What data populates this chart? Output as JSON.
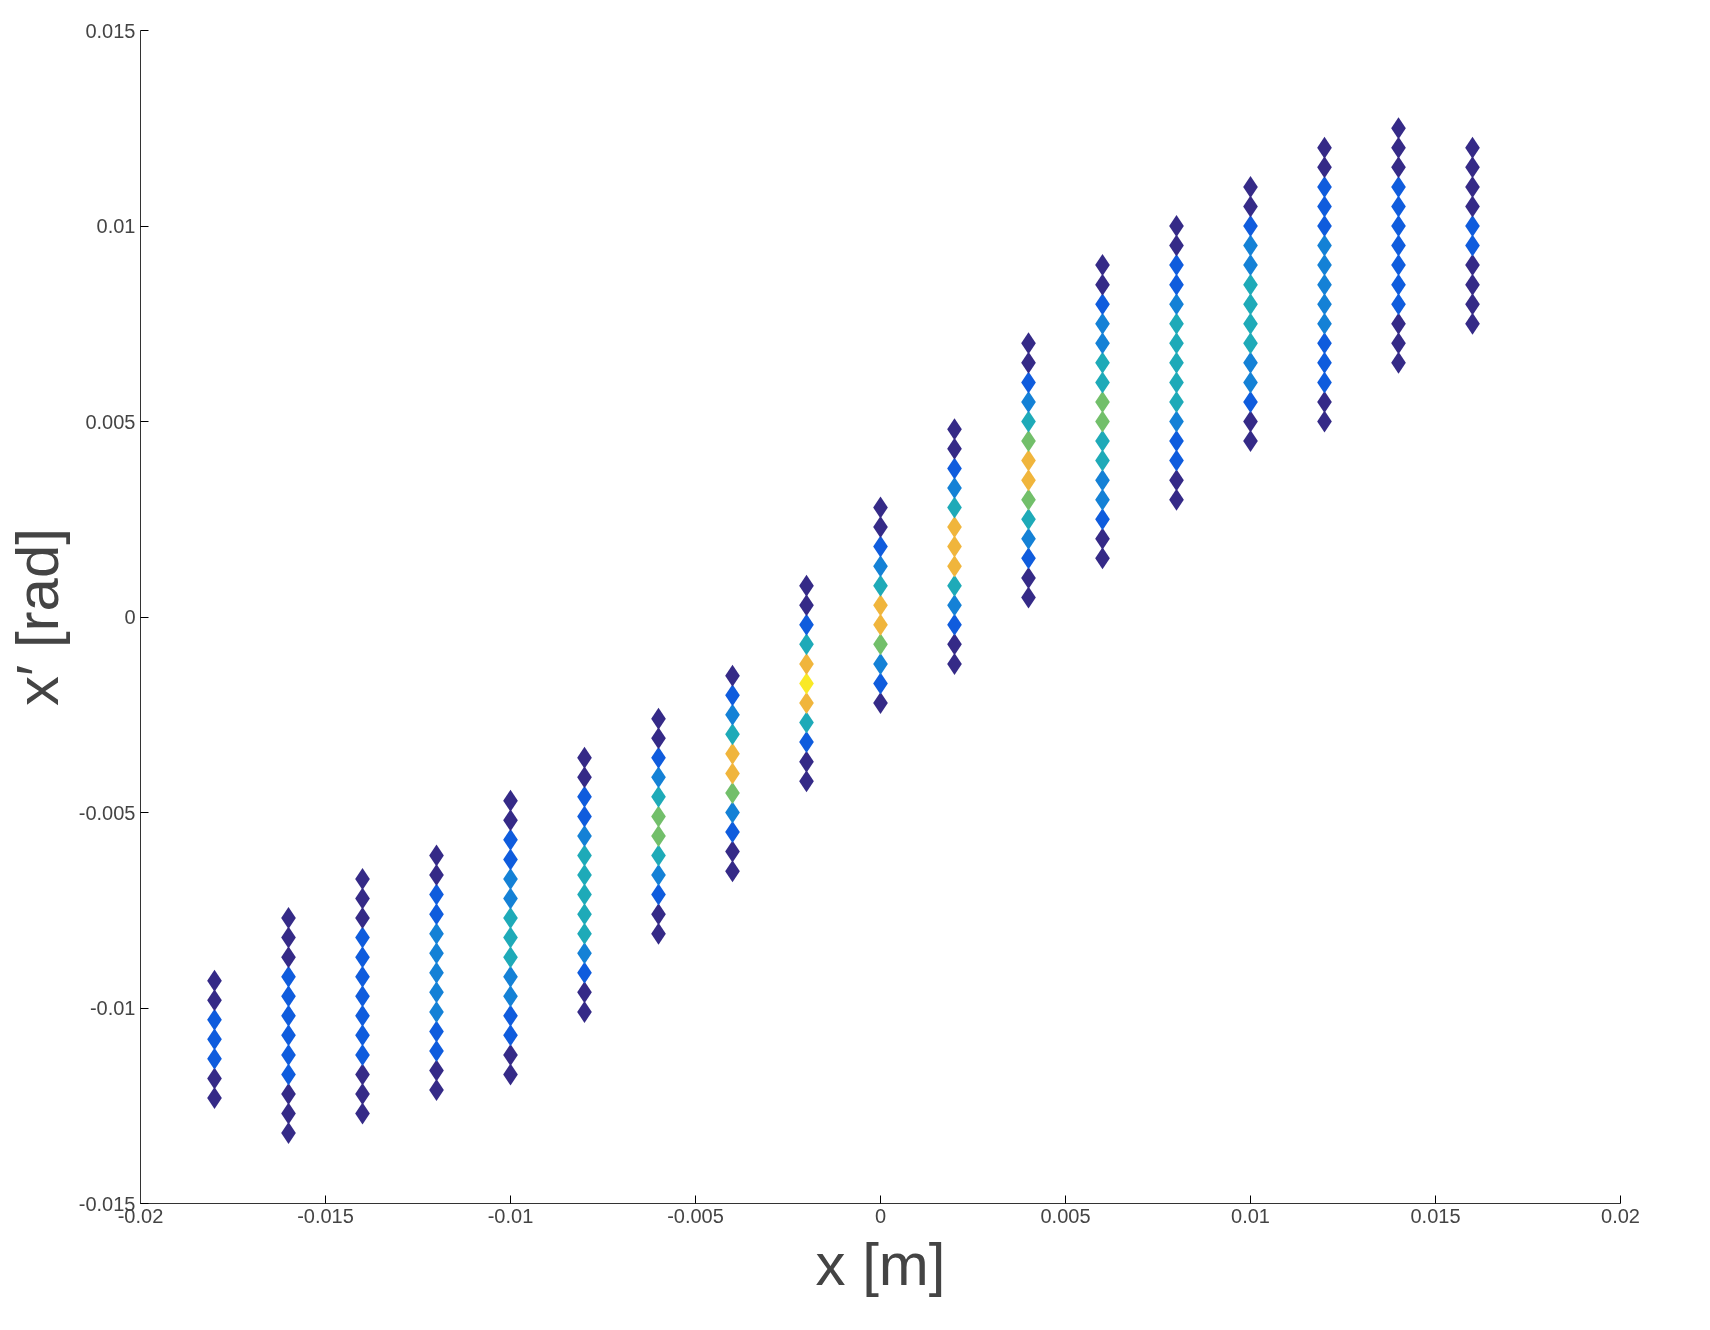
{
  "chart_data": {
    "type": "scatter",
    "xlabel": "x [m]",
    "ylabel": "x′ [rad]",
    "marker": "diamond",
    "grid": false,
    "xlim": [
      -0.02,
      0.02
    ],
    "xticks": [
      -0.02,
      -0.015,
      -0.01,
      -0.005,
      0,
      0.005,
      0.01,
      0.015,
      0.02
    ],
    "ylim": [
      -0.015,
      0.015
    ],
    "yticks": [
      -0.015,
      -0.01,
      -0.005,
      0,
      0.005,
      0.01,
      0.015
    ],
    "series": [
      {
        "x": [
          -0.018,
          -0.018,
          -0.018,
          -0.018,
          -0.018,
          -0.018,
          -0.018
        ],
        "values": [
          -0.0123,
          -0.0118,
          -0.0113,
          -0.0108,
          -0.0103,
          -0.0098,
          -0.0093
        ],
        "colors": [
          "#352a87",
          "#352a87",
          "#0f5cdd",
          "#0f5cdd",
          "#0f5cdd",
          "#352a87",
          "#352a87"
        ]
      },
      {
        "x": [
          -0.016,
          -0.016,
          -0.016,
          -0.016,
          -0.016,
          -0.016,
          -0.016,
          -0.016,
          -0.016,
          -0.016,
          -0.016,
          -0.016
        ],
        "values": [
          -0.0132,
          -0.0127,
          -0.0122,
          -0.0117,
          -0.0112,
          -0.0107,
          -0.0102,
          -0.0097,
          -0.0092,
          -0.0087,
          -0.0082,
          -0.0077
        ],
        "colors": [
          "#352a87",
          "#352a87",
          "#352a87",
          "#0f5cdd",
          "#0f5cdd",
          "#0f5cdd",
          "#0f5cdd",
          "#0f5cdd",
          "#0f5cdd",
          "#352a87",
          "#352a87",
          "#352a87"
        ]
      },
      {
        "x": [
          -0.014,
          -0.014,
          -0.014,
          -0.014,
          -0.014,
          -0.014,
          -0.014,
          -0.014,
          -0.014,
          -0.014,
          -0.014,
          -0.014,
          -0.014
        ],
        "values": [
          -0.0127,
          -0.0122,
          -0.0117,
          -0.0112,
          -0.0107,
          -0.0102,
          -0.0097,
          -0.0092,
          -0.0087,
          -0.0082,
          -0.0077,
          -0.0072,
          -0.0067
        ],
        "colors": [
          "#352a87",
          "#352a87",
          "#352a87",
          "#0f5cdd",
          "#0f5cdd",
          "#0f5cdd",
          "#0f5cdd",
          "#0f5cdd",
          "#0f5cdd",
          "#0f5cdd",
          "#352a87",
          "#352a87",
          "#352a87"
        ]
      },
      {
        "x": [
          -0.012,
          -0.012,
          -0.012,
          -0.012,
          -0.012,
          -0.012,
          -0.012,
          -0.012,
          -0.012,
          -0.012,
          -0.012,
          -0.012,
          -0.012
        ],
        "values": [
          -0.0121,
          -0.0116,
          -0.0111,
          -0.0106,
          -0.0101,
          -0.0096,
          -0.0091,
          -0.0086,
          -0.0081,
          -0.0076,
          -0.0071,
          -0.0066,
          -0.0061
        ],
        "colors": [
          "#352a87",
          "#352a87",
          "#0f5cdd",
          "#0f5cdd",
          "#1481d6",
          "#1481d6",
          "#1481d6",
          "#1481d6",
          "#1481d6",
          "#0f5cdd",
          "#0f5cdd",
          "#352a87",
          "#352a87"
        ]
      },
      {
        "x": [
          -0.01,
          -0.01,
          -0.01,
          -0.01,
          -0.01,
          -0.01,
          -0.01,
          -0.01,
          -0.01,
          -0.01,
          -0.01,
          -0.01,
          -0.01,
          -0.01,
          -0.01
        ],
        "values": [
          -0.0117,
          -0.0112,
          -0.0107,
          -0.0102,
          -0.0097,
          -0.0092,
          -0.0087,
          -0.0082,
          -0.0077,
          -0.0072,
          -0.0067,
          -0.0062,
          -0.0057,
          -0.0052,
          -0.0047
        ],
        "colors": [
          "#352a87",
          "#352a87",
          "#0f5cdd",
          "#0f5cdd",
          "#1481d6",
          "#1481d6",
          "#1eaab8",
          "#1eaab8",
          "#1eaab8",
          "#1481d6",
          "#1481d6",
          "#0f5cdd",
          "#0f5cdd",
          "#352a87",
          "#352a87"
        ]
      },
      {
        "x": [
          -0.008,
          -0.008,
          -0.008,
          -0.008,
          -0.008,
          -0.008,
          -0.008,
          -0.008,
          -0.008,
          -0.008,
          -0.008,
          -0.008,
          -0.008,
          -0.008
        ],
        "values": [
          -0.0101,
          -0.0096,
          -0.0091,
          -0.0086,
          -0.0081,
          -0.0076,
          -0.0071,
          -0.0066,
          -0.0061,
          -0.0056,
          -0.0051,
          -0.0046,
          -0.0041,
          -0.0036
        ],
        "colors": [
          "#352a87",
          "#352a87",
          "#0f5cdd",
          "#1481d6",
          "#1eaab8",
          "#1eaab8",
          "#1eaab8",
          "#1eaab8",
          "#1eaab8",
          "#1481d6",
          "#0f5cdd",
          "#0f5cdd",
          "#352a87",
          "#352a87"
        ]
      },
      {
        "x": [
          -0.006,
          -0.006,
          -0.006,
          -0.006,
          -0.006,
          -0.006,
          -0.006,
          -0.006,
          -0.006,
          -0.006,
          -0.006,
          -0.006
        ],
        "values": [
          -0.0081,
          -0.0076,
          -0.0071,
          -0.0066,
          -0.0061,
          -0.0056,
          -0.0051,
          -0.0046,
          -0.0041,
          -0.0036,
          -0.0031,
          -0.0026
        ],
        "colors": [
          "#352a87",
          "#352a87",
          "#0f5cdd",
          "#1481d6",
          "#1eaab8",
          "#72bf6a",
          "#72bf6a",
          "#1eaab8",
          "#1481d6",
          "#0f5cdd",
          "#352a87",
          "#352a87"
        ]
      },
      {
        "x": [
          -0.004,
          -0.004,
          -0.004,
          -0.004,
          -0.004,
          -0.004,
          -0.004,
          -0.004,
          -0.004,
          -0.004,
          -0.004
        ],
        "values": [
          -0.0065,
          -0.006,
          -0.0055,
          -0.005,
          -0.0045,
          -0.004,
          -0.0035,
          -0.003,
          -0.0025,
          -0.002,
          -0.0015
        ],
        "colors": [
          "#352a87",
          "#352a87",
          "#0f5cdd",
          "#1481d6",
          "#72bf6a",
          "#f0b53c",
          "#f0b53c",
          "#1eaab8",
          "#1481d6",
          "#0f5cdd",
          "#352a87"
        ]
      },
      {
        "x": [
          -0.002,
          -0.002,
          -0.002,
          -0.002,
          -0.002,
          -0.002,
          -0.002,
          -0.002,
          -0.002,
          -0.002,
          -0.002
        ],
        "values": [
          -0.0042,
          -0.0037,
          -0.0032,
          -0.0027,
          -0.0022,
          -0.0017,
          -0.0012,
          -0.0007,
          -0.0002,
          0.0003,
          0.0008
        ],
        "colors": [
          "#352a87",
          "#352a87",
          "#0f5cdd",
          "#1eaab8",
          "#f0b53c",
          "#f9e926",
          "#f0b53c",
          "#1eaab8",
          "#0f5cdd",
          "#352a87",
          "#352a87"
        ]
      },
      {
        "x": [
          0,
          0,
          0,
          0,
          0,
          0,
          0,
          0,
          0,
          0,
          0
        ],
        "values": [
          -0.0022,
          -0.0017,
          -0.0012,
          -0.0007,
          -0.0002,
          0.0003,
          0.0008,
          0.0013,
          0.0018,
          0.0023,
          0.0028
        ],
        "colors": [
          "#352a87",
          "#0f5cdd",
          "#1481d6",
          "#72bf6a",
          "#f0b53c",
          "#f0b53c",
          "#1eaab8",
          "#1481d6",
          "#0f5cdd",
          "#352a87",
          "#352a87"
        ]
      },
      {
        "x": [
          0.002,
          0.002,
          0.002,
          0.002,
          0.002,
          0.002,
          0.002,
          0.002,
          0.002,
          0.002,
          0.002,
          0.002,
          0.002
        ],
        "values": [
          -0.0012,
          -0.0007,
          -0.0002,
          0.0003,
          0.0008,
          0.0013,
          0.0018,
          0.0023,
          0.0028,
          0.0033,
          0.0038,
          0.0043,
          0.0048
        ],
        "colors": [
          "#352a87",
          "#352a87",
          "#0f5cdd",
          "#1481d6",
          "#1eaab8",
          "#f0b53c",
          "#f0b53c",
          "#f0b53c",
          "#1eaab8",
          "#1481d6",
          "#0f5cdd",
          "#352a87",
          "#352a87"
        ]
      },
      {
        "x": [
          0.004,
          0.004,
          0.004,
          0.004,
          0.004,
          0.004,
          0.004,
          0.004,
          0.004,
          0.004,
          0.004,
          0.004,
          0.004,
          0.004
        ],
        "values": [
          0.0005,
          0.001,
          0.0015,
          0.002,
          0.0025,
          0.003,
          0.0035,
          0.004,
          0.0045,
          0.005,
          0.0055,
          0.006,
          0.0065,
          0.007
        ],
        "colors": [
          "#352a87",
          "#352a87",
          "#0f5cdd",
          "#1481d6",
          "#1eaab8",
          "#72bf6a",
          "#f0b53c",
          "#f0b53c",
          "#72bf6a",
          "#1eaab8",
          "#1481d6",
          "#0f5cdd",
          "#352a87",
          "#352a87"
        ]
      },
      {
        "x": [
          0.006,
          0.006,
          0.006,
          0.006,
          0.006,
          0.006,
          0.006,
          0.006,
          0.006,
          0.006,
          0.006,
          0.006,
          0.006,
          0.006,
          0.006,
          0.006
        ],
        "values": [
          0.0015,
          0.002,
          0.0025,
          0.003,
          0.0035,
          0.004,
          0.0045,
          0.005,
          0.0055,
          0.006,
          0.0065,
          0.007,
          0.0075,
          0.008,
          0.0085,
          0.009
        ],
        "colors": [
          "#352a87",
          "#352a87",
          "#0f5cdd",
          "#1481d6",
          "#1481d6",
          "#1eaab8",
          "#1eaab8",
          "#72bf6a",
          "#72bf6a",
          "#1eaab8",
          "#1eaab8",
          "#1481d6",
          "#1481d6",
          "#0f5cdd",
          "#352a87",
          "#352a87"
        ]
      },
      {
        "x": [
          0.008,
          0.008,
          0.008,
          0.008,
          0.008,
          0.008,
          0.008,
          0.008,
          0.008,
          0.008,
          0.008,
          0.008,
          0.008,
          0.008,
          0.008
        ],
        "values": [
          0.003,
          0.0035,
          0.004,
          0.0045,
          0.005,
          0.0055,
          0.006,
          0.0065,
          0.007,
          0.0075,
          0.008,
          0.0085,
          0.009,
          0.0095,
          0.01
        ],
        "colors": [
          "#352a87",
          "#352a87",
          "#0f5cdd",
          "#0f5cdd",
          "#1481d6",
          "#1eaab8",
          "#1eaab8",
          "#1eaab8",
          "#1eaab8",
          "#1eaab8",
          "#1481d6",
          "#0f5cdd",
          "#0f5cdd",
          "#352a87",
          "#352a87"
        ]
      },
      {
        "x": [
          0.01,
          0.01,
          0.01,
          0.01,
          0.01,
          0.01,
          0.01,
          0.01,
          0.01,
          0.01,
          0.01,
          0.01,
          0.01,
          0.01
        ],
        "values": [
          0.0045,
          0.005,
          0.0055,
          0.006,
          0.0065,
          0.007,
          0.0075,
          0.008,
          0.0085,
          0.009,
          0.0095,
          0.01,
          0.0105,
          0.011
        ],
        "colors": [
          "#352a87",
          "#352a87",
          "#0f5cdd",
          "#1481d6",
          "#1481d6",
          "#1eaab8",
          "#1eaab8",
          "#1eaab8",
          "#1eaab8",
          "#1481d6",
          "#1481d6",
          "#0f5cdd",
          "#352a87",
          "#352a87"
        ]
      },
      {
        "x": [
          0.012,
          0.012,
          0.012,
          0.012,
          0.012,
          0.012,
          0.012,
          0.012,
          0.012,
          0.012,
          0.012,
          0.012,
          0.012,
          0.012,
          0.012
        ],
        "values": [
          0.005,
          0.0055,
          0.006,
          0.0065,
          0.007,
          0.0075,
          0.008,
          0.0085,
          0.009,
          0.0095,
          0.01,
          0.0105,
          0.011,
          0.0115,
          0.012
        ],
        "colors": [
          "#352a87",
          "#352a87",
          "#0f5cdd",
          "#0f5cdd",
          "#0f5cdd",
          "#1481d6",
          "#1481d6",
          "#1481d6",
          "#1481d6",
          "#1481d6",
          "#0f5cdd",
          "#0f5cdd",
          "#0f5cdd",
          "#352a87",
          "#352a87"
        ]
      },
      {
        "x": [
          0.014,
          0.014,
          0.014,
          0.014,
          0.014,
          0.014,
          0.014,
          0.014,
          0.014,
          0.014,
          0.014,
          0.014,
          0.014
        ],
        "values": [
          0.0065,
          0.007,
          0.0075,
          0.008,
          0.0085,
          0.009,
          0.0095,
          0.01,
          0.0105,
          0.011,
          0.0115,
          0.012,
          0.0125
        ],
        "colors": [
          "#352a87",
          "#352a87",
          "#352a87",
          "#0f5cdd",
          "#0f5cdd",
          "#0f5cdd",
          "#0f5cdd",
          "#0f5cdd",
          "#0f5cdd",
          "#0f5cdd",
          "#352a87",
          "#352a87",
          "#352a87"
        ]
      },
      {
        "x": [
          0.016,
          0.016,
          0.016,
          0.016,
          0.016,
          0.016,
          0.016,
          0.016,
          0.016,
          0.016
        ],
        "values": [
          0.0075,
          0.008,
          0.0085,
          0.009,
          0.0095,
          0.01,
          0.0105,
          0.011,
          0.0115,
          0.012
        ],
        "colors": [
          "#352a87",
          "#352a87",
          "#352a87",
          "#352a87",
          "#0f5cdd",
          "#0f5cdd",
          "#352a87",
          "#352a87",
          "#352a87",
          "#352a87"
        ]
      }
    ]
  }
}
